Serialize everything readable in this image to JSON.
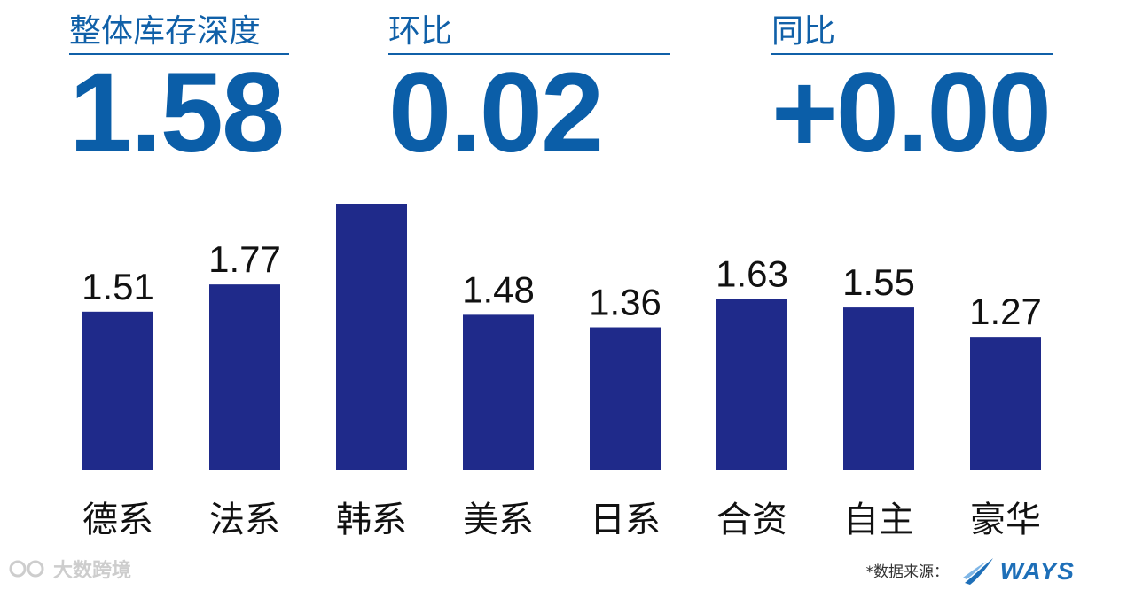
{
  "kpis": [
    {
      "label": "整体库存深度",
      "value": "1.58"
    },
    {
      "label": "环比",
      "value": "0.02"
    },
    {
      "label": "同比",
      "value": "+0.00"
    }
  ],
  "chart_data": {
    "type": "bar",
    "categories": [
      "德系",
      "法系",
      "韩系",
      "美系",
      "日系",
      "合资",
      "自主",
      "豪华"
    ],
    "values": [
      1.51,
      1.77,
      2.57,
      1.48,
      1.36,
      1.63,
      1.55,
      1.27
    ],
    "bar_color": "#1f2a8a",
    "title": "",
    "xlabel": "",
    "ylabel": "",
    "grid": false
  },
  "footer": {
    "source_label": "*数据来源：",
    "brand": "WAYS",
    "watermark": "大数跨境"
  },
  "colors": {
    "accent": "#0b5ea8"
  }
}
